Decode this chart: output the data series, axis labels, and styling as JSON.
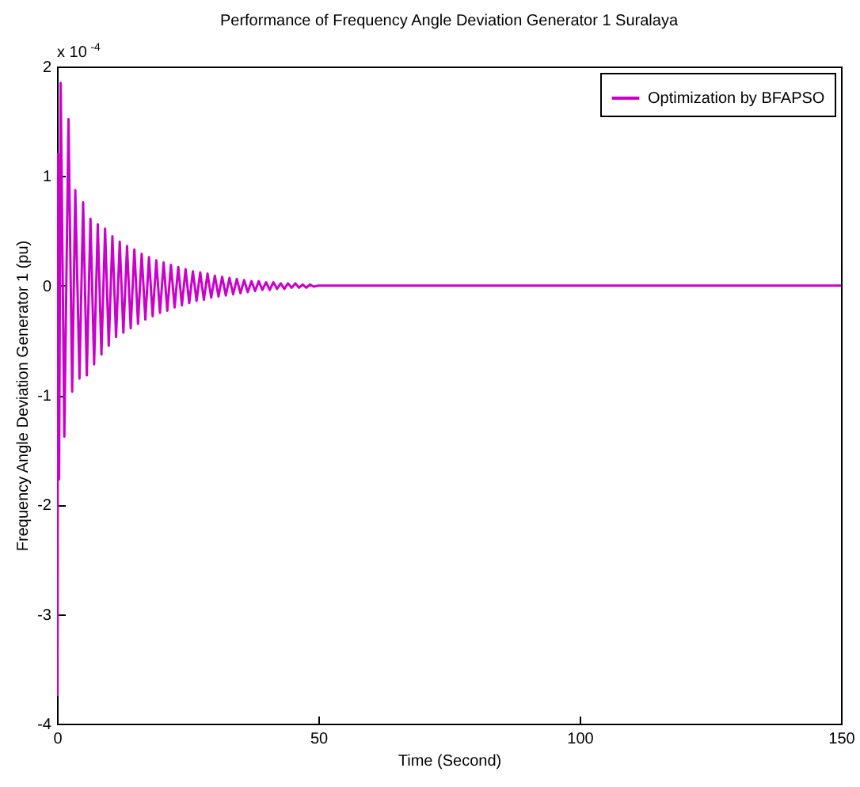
{
  "chart_data": {
    "type": "line",
    "title": "Performance of Frequency Angle Deviation Generator 1 Suralaya",
    "xlabel": "Time (Second)",
    "ylabel": "Frequency Angle Deviation Generator 1 (pu)",
    "annotations": [
      "x 10$^{-4}$"
    ],
    "xlim": [
      0,
      150
    ],
    "xticks": [
      0,
      50,
      100,
      150
    ],
    "ylim": [
      -4,
      2
    ],
    "yticks": [
      -4,
      -3,
      -2,
      -1,
      0,
      1,
      2
    ],
    "legend": "top right",
    "x": [
      0,
      0.1,
      0.2,
      0.4,
      0.7,
      1.4,
      2.2,
      2.9,
      3.5,
      4.3,
      5.0,
      5.7,
      6.4,
      7.1,
      7.8,
      8.5,
      9.2,
      9.9,
      10.6,
      11.3,
      12.0,
      12.7,
      13.4,
      14.1,
      14.8,
      15.5,
      16.2,
      16.9,
      17.6,
      18.3,
      19.0,
      19.7,
      20.4,
      21.1,
      21.8,
      22.5,
      23.2,
      23.9,
      24.6,
      25.3,
      26.0,
      26.7,
      27.4,
      28.1,
      28.8,
      29.5,
      30.2,
      30.9,
      31.6,
      32.3,
      33.0,
      33.7,
      34.4,
      35.1,
      35.8,
      36.5,
      37.2,
      37.9,
      38.6,
      39.3,
      40.0,
      40.7,
      41.4,
      42.1,
      42.8,
      43.5,
      44.2,
      44.9,
      45.6,
      46.3,
      47.0,
      47.7,
      48.4,
      49.1,
      50,
      60,
      150
    ],
    "series": [
      {
        "name": "Optimization by BFAPSO",
        "color": "#cc00cc",
        "values": [
          0,
          -3.74,
          1.2,
          -1.77,
          1.85,
          -1.38,
          1.52,
          -0.97,
          0.87,
          -0.85,
          0.76,
          -0.82,
          0.61,
          -0.72,
          0.56,
          -0.63,
          0.52,
          -0.55,
          0.45,
          -0.47,
          0.4,
          -0.43,
          0.36,
          -0.39,
          0.33,
          -0.35,
          0.29,
          -0.31,
          0.26,
          -0.28,
          0.23,
          -0.25,
          0.21,
          -0.23,
          0.19,
          -0.2,
          0.17,
          -0.18,
          0.15,
          -0.16,
          0.13,
          -0.14,
          0.12,
          -0.13,
          0.11,
          -0.11,
          0.09,
          -0.1,
          0.08,
          -0.09,
          0.07,
          -0.08,
          0.06,
          -0.07,
          0.05,
          -0.06,
          0.04,
          -0.05,
          0.04,
          -0.04,
          0.03,
          -0.04,
          0.03,
          -0.03,
          0.02,
          -0.03,
          0.02,
          -0.02,
          0.02,
          -0.02,
          0.01,
          -0.02,
          0.01,
          -0.01,
          0,
          0,
          0
        ]
      }
    ]
  }
}
